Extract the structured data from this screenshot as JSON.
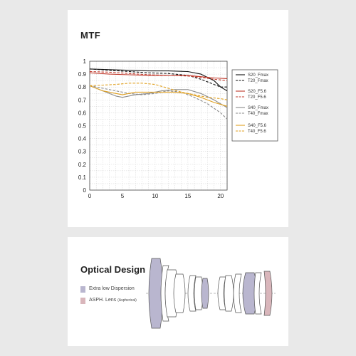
{
  "mtf_title": "MTF",
  "optical_title": "Optical Design",
  "optical_key": [
    {
      "label": "Extra low Dispersion",
      "note": "",
      "color": "#b9b6cf"
    },
    {
      "label": "ASPH. Lens",
      "note": "(Aspherical)",
      "color": "#d9b6bb"
    }
  ],
  "chart_data": {
    "type": "line",
    "title": "MTF",
    "xlim": [
      0,
      21
    ],
    "ylim": [
      0,
      1
    ],
    "x_ticks": [
      0,
      5,
      10,
      15,
      20
    ],
    "y_ticks": [
      0,
      0.1,
      0.2,
      0.3,
      0.4,
      0.5,
      0.6,
      0.7,
      0.8,
      0.9,
      1
    ],
    "y_tick_labels": [
      "0",
      "0.1",
      "0.2",
      "0.3",
      "0.4",
      "0.5",
      "0.6",
      "0.7",
      "0.8",
      "0.9",
      "1"
    ],
    "grid": true,
    "legend_position": "right",
    "series": [
      {
        "name": "S20_Fmax",
        "color": "#111111",
        "dash": false,
        "x": [
          0,
          3,
          6,
          9,
          12,
          15,
          17,
          19,
          20,
          21
        ],
        "y": [
          0.94,
          0.935,
          0.93,
          0.925,
          0.925,
          0.92,
          0.9,
          0.85,
          0.8,
          0.77
        ]
      },
      {
        "name": "T20_Fmax",
        "color": "#111111",
        "dash": true,
        "x": [
          0,
          3,
          6,
          9,
          12,
          15,
          17,
          19,
          20,
          21
        ],
        "y": [
          0.94,
          0.93,
          0.92,
          0.91,
          0.905,
          0.89,
          0.86,
          0.82,
          0.8,
          0.8
        ]
      },
      {
        "name": "S20_F5.6",
        "color": "#c0392b",
        "dash": false,
        "x": [
          0,
          3,
          6,
          9,
          12,
          15,
          17,
          19,
          21
        ],
        "y": [
          0.91,
          0.9,
          0.895,
          0.89,
          0.89,
          0.89,
          0.88,
          0.87,
          0.865
        ]
      },
      {
        "name": "T20_F5.6",
        "color": "#c0392b",
        "dash": true,
        "x": [
          0,
          3,
          6,
          9,
          12,
          15,
          17,
          19,
          21
        ],
        "y": [
          0.92,
          0.915,
          0.905,
          0.895,
          0.89,
          0.885,
          0.875,
          0.86,
          0.85
        ]
      },
      {
        "name": "S40_Fmax",
        "color": "#8a8a8a",
        "dash": false,
        "x": [
          0,
          2,
          4,
          5,
          7,
          9,
          11,
          13,
          15,
          17,
          19,
          21
        ],
        "y": [
          0.81,
          0.77,
          0.73,
          0.72,
          0.74,
          0.75,
          0.77,
          0.78,
          0.78,
          0.75,
          0.7,
          0.64
        ]
      },
      {
        "name": "T40_Fmax",
        "color": "#8a8a8a",
        "dash": true,
        "x": [
          0,
          2,
          4,
          6,
          8,
          10,
          12,
          14,
          16,
          18,
          20,
          21
        ],
        "y": [
          0.81,
          0.79,
          0.77,
          0.75,
          0.74,
          0.75,
          0.77,
          0.76,
          0.72,
          0.67,
          0.6,
          0.55
        ]
      },
      {
        "name": "S40_F5.6",
        "color": "#e0a020",
        "dash": false,
        "x": [
          0,
          2,
          4,
          5,
          7,
          9,
          11,
          13,
          15,
          17,
          19,
          21
        ],
        "y": [
          0.81,
          0.77,
          0.75,
          0.74,
          0.76,
          0.76,
          0.76,
          0.76,
          0.75,
          0.72,
          0.68,
          0.65
        ]
      },
      {
        "name": "T40_F5.6",
        "color": "#e0a020",
        "dash": true,
        "x": [
          0,
          2,
          4,
          6,
          8,
          10,
          12,
          14,
          16,
          18,
          20,
          21
        ],
        "y": [
          0.81,
          0.815,
          0.82,
          0.83,
          0.83,
          0.82,
          0.79,
          0.76,
          0.74,
          0.72,
          0.71,
          0.7
        ]
      }
    ]
  }
}
